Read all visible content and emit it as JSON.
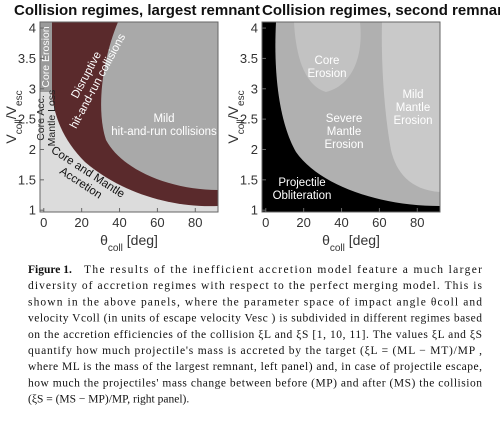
{
  "chart_data": [
    {
      "type": "region-map",
      "title": "Collision regimes, largest remnant",
      "xlabel": [
        "θ",
        "coll",
        " [deg]"
      ],
      "ylabel": [
        "V",
        "coll",
        "/V",
        "esc"
      ],
      "xlim": [
        -2,
        92
      ],
      "ylim": [
        0.97,
        4.1
      ],
      "xticks": [
        0,
        20,
        40,
        60,
        80
      ],
      "yticks": [
        1,
        1.5,
        2,
        2.5,
        3,
        3.5,
        4
      ],
      "regions": [
        [
          "Core Erosion"
        ],
        [
          "Core Acc.",
          "Mantle Loss"
        ],
        [
          "Disruptive",
          "hit-and-run collisions"
        ],
        [
          "Mild",
          "hit-and-run collisions"
        ],
        [
          "Core and Mantle",
          "Accretion"
        ]
      ]
    },
    {
      "type": "region-map",
      "title": "Collision regimes, second remnant",
      "xlabel": [
        "θ",
        "coll",
        " [deg]"
      ],
      "ylabel": [
        "V",
        "coll",
        "/V",
        "esc"
      ],
      "xlim": [
        -2,
        92
      ],
      "ylim": [
        0.97,
        4.1
      ],
      "xticks": [
        0,
        20,
        40,
        60,
        80
      ],
      "yticks": [
        1,
        1.5,
        2,
        2.5,
        3,
        3.5,
        4
      ],
      "regions": [
        [
          "Core",
          "Erosion"
        ],
        [
          "Severe",
          "Mantle",
          "Erosion"
        ],
        [
          "Mild",
          "Mantle",
          "Erosion"
        ],
        [
          "Projectile",
          "Obliteration"
        ]
      ]
    }
  ],
  "caption": {
    "label": "Figure 1.",
    "lines": [
      "The results of the inefficient accretion model feature a much larger",
      "diversity of accretion regimes with respect to the perfect merging model. This is",
      "shown in the above panels, where the parameter space of impact angle θcoll and",
      "velocity Vcoll (in units of escape velocity Vesc ) is subdivided in different regimes based",
      "on the accretion efficiencies of the collision ξL and ξS [1, 10, 11]. The values ξL and ξS",
      "quantify how much projectile's mass is accreted by the target (ξL = (ML − MT)/MP ,",
      "where ML is the mass of the largest remnant, left panel) and, in case of projectile escape,",
      "how much the projectiles' mass change between before (MP) and after (MS) the collision",
      "(ξS = (MS − MP)/MP, right panel)."
    ]
  }
}
